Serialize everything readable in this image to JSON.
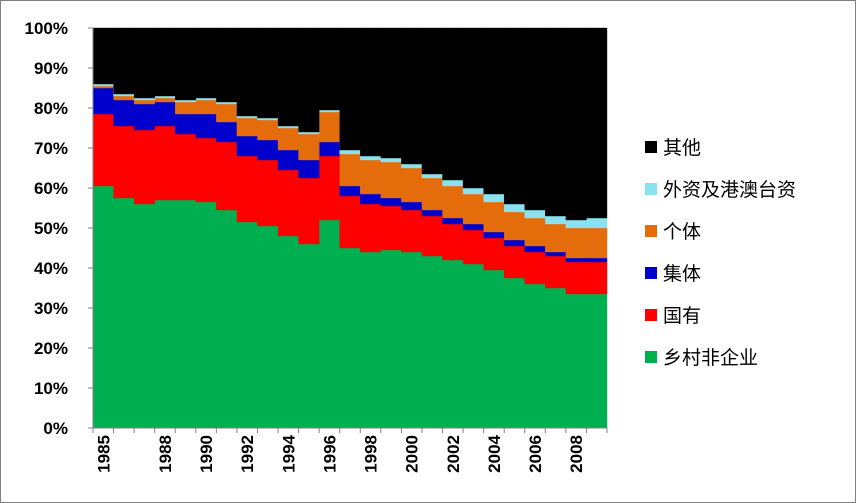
{
  "chart_data": {
    "type": "area",
    "stacked": true,
    "normalized": true,
    "title": "",
    "xlabel": "",
    "ylabel": "",
    "ylim": [
      0,
      100
    ],
    "grid": false,
    "legend_position": "right",
    "categories": [
      1985,
      1986,
      1987,
      1988,
      1989,
      1990,
      1991,
      1992,
      1993,
      1994,
      1995,
      1996,
      1997,
      1998,
      1999,
      2000,
      2001,
      2002,
      2003,
      2004,
      2005,
      2006,
      2007,
      2008,
      2009
    ],
    "x_tick_labels": [
      "1985",
      "1988",
      "1990",
      "1992",
      "1994",
      "1996",
      "1998",
      "2000",
      "2002",
      "2004",
      "2006",
      "2008"
    ],
    "y_tick_labels": [
      "0%",
      "10%",
      "20%",
      "30%",
      "40%",
      "50%",
      "60%",
      "70%",
      "80%",
      "90%",
      "100%"
    ],
    "series": [
      {
        "name": "乡村非企业",
        "color": "#00b050",
        "values": [
          60.5,
          57.5,
          56,
          57,
          57,
          56.5,
          54.5,
          51.5,
          50.5,
          48,
          46,
          52,
          45,
          44,
          44.5,
          44,
          43,
          42,
          41,
          39.5,
          37.5,
          36,
          35,
          33.5,
          33.5
        ]
      },
      {
        "name": "国有",
        "color": "#ff0000",
        "values": [
          18,
          18,
          18.5,
          18.5,
          16.5,
          16,
          17,
          16.5,
          16.5,
          16.5,
          16.5,
          16,
          13,
          12,
          11,
          10.5,
          10,
          9,
          8.5,
          8,
          8,
          8,
          8,
          8,
          8
        ]
      },
      {
        "name": "集体",
        "color": "#0000cc",
        "values": [
          6.5,
          6.5,
          6.5,
          6,
          5,
          6,
          5,
          5,
          5,
          5,
          4.5,
          3.5,
          2.5,
          2.5,
          2,
          2,
          1.5,
          1.5,
          1.5,
          1.5,
          1.5,
          1.5,
          1,
          1,
          1
        ]
      },
      {
        "name": "个体",
        "color": "#e46c0a",
        "values": [
          0.5,
          1,
          1,
          1,
          3,
          3.5,
          4.5,
          4.5,
          5,
          5.5,
          6.5,
          7.5,
          8,
          8.5,
          9,
          8.5,
          8,
          8,
          7.5,
          7.5,
          7,
          7,
          7,
          7.5,
          7.5
        ]
      },
      {
        "name": "外资及港澳台资",
        "color": "#8ae2f0",
        "values": [
          0.5,
          0.5,
          0.5,
          0.5,
          0.5,
          0.5,
          0.5,
          0.5,
          0.5,
          0.5,
          0.5,
          0.5,
          1,
          1,
          1,
          1,
          1,
          1.5,
          1.5,
          2,
          2,
          2,
          2,
          2,
          2.5
        ]
      },
      {
        "name": "其他",
        "color": "#000000",
        "values": [
          14,
          16.5,
          17.5,
          17,
          18,
          17.5,
          18.5,
          22,
          22.5,
          24.5,
          26,
          20.5,
          30.5,
          32,
          32.5,
          34,
          36.5,
          38,
          40,
          41.5,
          44,
          45.5,
          47,
          48,
          47.5
        ]
      }
    ],
    "legend_order": [
      "其他",
      "外资及港澳台资",
      "个体",
      "集体",
      "国有",
      "乡村非企业"
    ]
  }
}
